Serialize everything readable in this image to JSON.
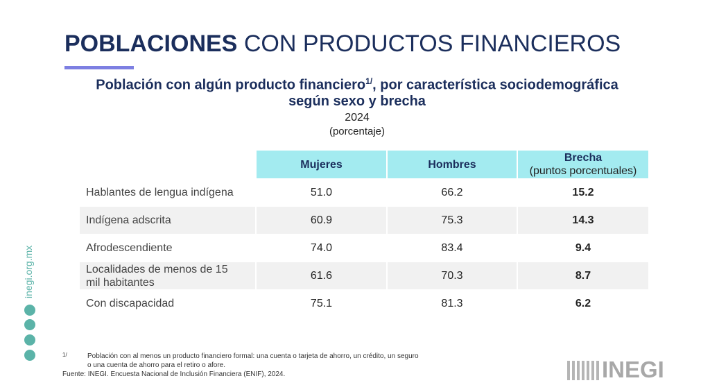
{
  "header": {
    "title_bold": "POBLACIONES",
    "title_rest": "CON PRODUCTOS FINANCIEROS"
  },
  "subtitle": {
    "line1": "Población con algún producto financiero",
    "sup": "1/",
    "line1_rest": ", por característica sociodemográfica",
    "line2": "según sexo y brecha",
    "year": "2024",
    "unit": "(porcentaje)"
  },
  "table": {
    "columns": [
      "Mujeres",
      "Hombres",
      "Brecha"
    ],
    "column_note": "(puntos porcentuales)",
    "rows": [
      [
        "Hablantes de lengua indígena",
        "51.0",
        "66.2",
        "15.2"
      ],
      [
        "Indígena adscrita",
        "60.9",
        "75.3",
        "14.3"
      ],
      [
        "Afrodescendiente",
        "74.0",
        "83.4",
        "9.4"
      ],
      [
        "Localidades de menos de 15 mil habitantes",
        "61.6",
        "70.3",
        "8.7"
      ],
      [
        "Con discapacidad",
        "75.1",
        "81.3",
        "6.2"
      ]
    ]
  },
  "footnote": {
    "mark": "1/",
    "line1": "Población con al menos un producto financiero formal: una cuenta o tarjeta de ahorro, un crédito, un seguro",
    "line2": "o una cuenta de ahorro para el retiro o afore."
  },
  "source": "Fuente: INEGI. Encuesta Nacional de Inclusión Financiera (ENIF), 2024.",
  "sidebar": {
    "url": "inegi.org.mx"
  },
  "logo": "INEGI"
}
